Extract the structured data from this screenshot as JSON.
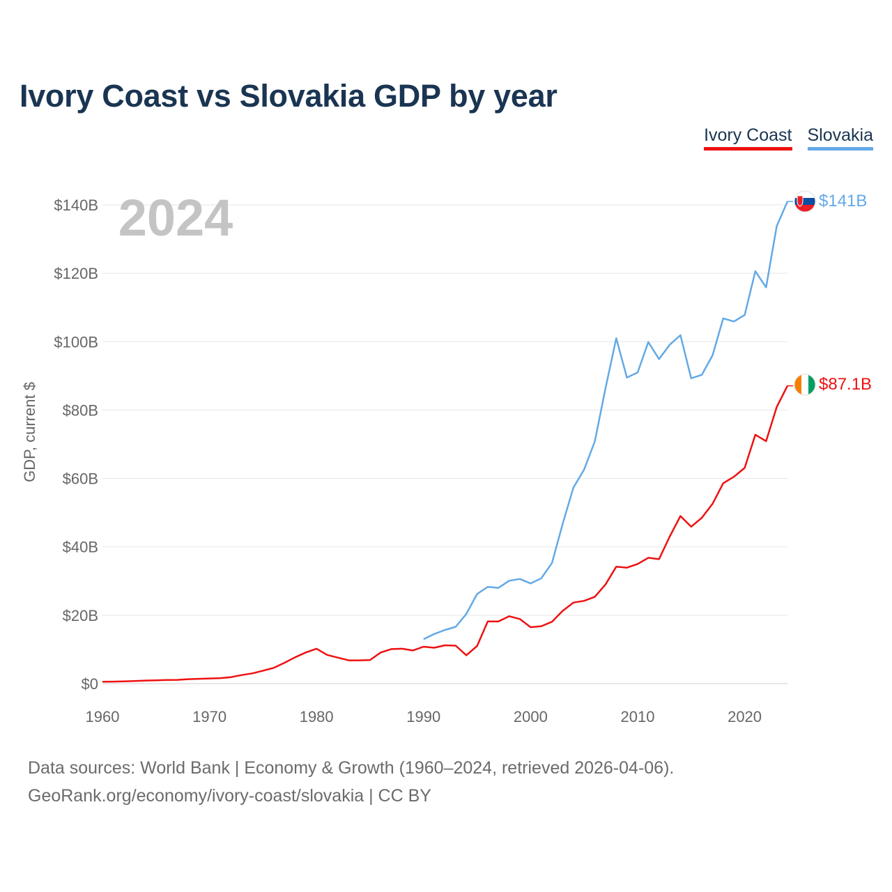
{
  "title": "Ivory Coast vs Slovakia GDP by year",
  "legend": [
    {
      "label": "Ivory Coast",
      "color": "#ee1111"
    },
    {
      "label": "Slovakia",
      "color": "#63a9e6"
    }
  ],
  "year_watermark": "2024",
  "end_labels": {
    "slovakia": "$141B",
    "ivory_coast": "$87.1B"
  },
  "footer": {
    "line1": "Data sources: World Bank | Economy & Growth (1960–2024, retrieved 2026-04-06).",
    "line2": "GeoRank.org/economy/ivory-coast/slovakia | CC BY"
  },
  "chart_data": {
    "type": "line",
    "title": "Ivory Coast vs Slovakia GDP by year",
    "ylabel": "GDP, current $",
    "xlabel": "",
    "xlim": [
      1960,
      2024
    ],
    "ylim": [
      0,
      140
    ],
    "y_unit": "billion USD",
    "x_ticks": [
      1960,
      1970,
      1980,
      1990,
      2000,
      2010,
      2020
    ],
    "x_tick_labels": [
      "1960",
      "1970",
      "1980",
      "1990",
      "2000",
      "2010",
      "2020"
    ],
    "y_ticks": [
      0,
      20,
      40,
      60,
      80,
      100,
      120,
      140
    ],
    "y_tick_labels": [
      "$0",
      "$20B",
      "$40B",
      "$60B",
      "$80B",
      "$100B",
      "$120B",
      "$140B"
    ],
    "grid": true,
    "legend_position": "top-right",
    "series": [
      {
        "name": "Ivory Coast",
        "color": "#ee1111",
        "x": [
          1960,
          1961,
          1962,
          1963,
          1964,
          1965,
          1966,
          1967,
          1968,
          1969,
          1970,
          1971,
          1972,
          1973,
          1974,
          1975,
          1976,
          1977,
          1978,
          1979,
          1980,
          1981,
          1982,
          1983,
          1984,
          1985,
          1986,
          1987,
          1988,
          1989,
          1990,
          1991,
          1992,
          1993,
          1994,
          1995,
          1996,
          1997,
          1998,
          1999,
          2000,
          2001,
          2002,
          2003,
          2004,
          2005,
          2006,
          2007,
          2008,
          2009,
          2010,
          2011,
          2012,
          2013,
          2014,
          2015,
          2016,
          2017,
          2018,
          2019,
          2020,
          2021,
          2022,
          2023,
          2024
        ],
        "values": [
          0.55,
          0.6,
          0.65,
          0.75,
          0.9,
          0.95,
          1.05,
          1.1,
          1.3,
          1.4,
          1.5,
          1.6,
          1.9,
          2.5,
          3.0,
          3.8,
          4.6,
          6.1,
          7.7,
          9.1,
          10.2,
          8.4,
          7.6,
          6.8,
          6.8,
          6.9,
          9.1,
          10.1,
          10.2,
          9.7,
          10.8,
          10.5,
          11.2,
          11.1,
          8.3,
          11.0,
          18.2,
          18.2,
          19.7,
          18.9,
          16.5,
          16.8,
          18.1,
          21.3,
          23.7,
          24.2,
          25.4,
          29.0,
          34.2,
          33.9,
          35.0,
          36.8,
          36.4,
          43.0,
          49.0,
          45.9,
          48.5,
          52.6,
          58.6,
          60.5,
          63.1,
          72.8,
          70.9,
          80.9,
          87.1
        ]
      },
      {
        "name": "Slovakia",
        "color": "#63a9e6",
        "x": [
          1990,
          1991,
          1992,
          1993,
          1994,
          1995,
          1996,
          1997,
          1998,
          1999,
          2000,
          2001,
          2002,
          2003,
          2004,
          2005,
          2006,
          2007,
          2008,
          2009,
          2010,
          2011,
          2012,
          2013,
          2014,
          2015,
          2016,
          2017,
          2018,
          2019,
          2020,
          2021,
          2022,
          2023,
          2024
        ],
        "values": [
          13.0,
          14.5,
          15.7,
          16.6,
          20.4,
          26.2,
          28.3,
          28.0,
          30.1,
          30.6,
          29.3,
          30.8,
          35.3,
          46.8,
          57.3,
          62.6,
          70.8,
          86.4,
          101.0,
          89.5,
          91.0,
          99.9,
          94.9,
          99.1,
          101.9,
          89.3,
          90.3,
          96.0,
          106.8,
          105.9,
          107.8,
          120.6,
          115.9,
          133.8,
          141.0
        ]
      }
    ]
  }
}
